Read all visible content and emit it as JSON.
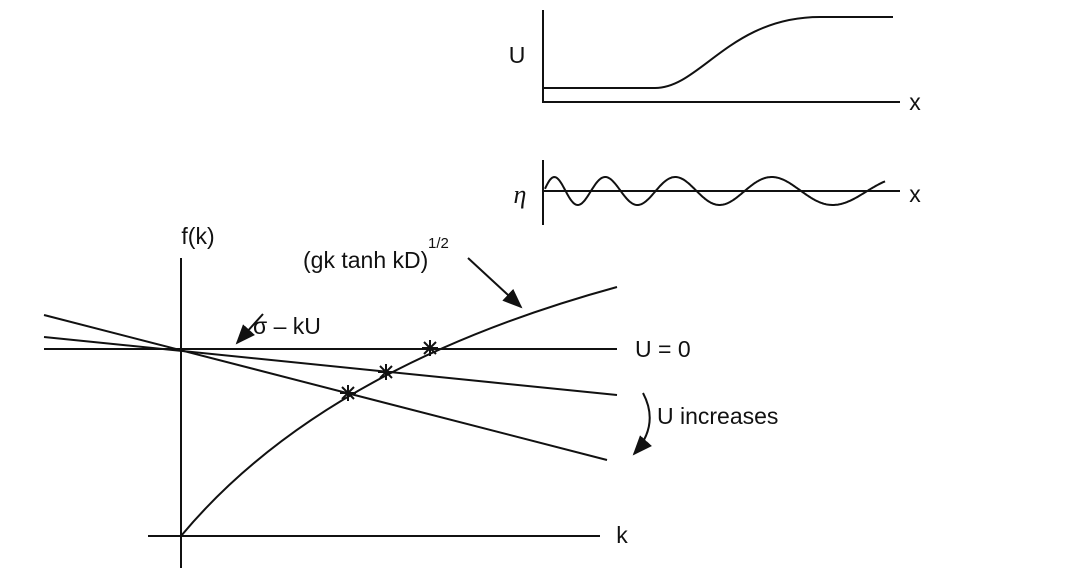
{
  "top_plot": {
    "y_label": "U",
    "x_label": "x"
  },
  "wave_plot": {
    "y_label": "η",
    "x_label": "x"
  },
  "main_plot": {
    "y_label": "f(k)",
    "x_label": "k",
    "curve_label": "(gk tanh kD)",
    "curve_exponent": "1/2",
    "line_label": "σ – kU",
    "u_zero_label": "U = 0",
    "increase_label": "U increases"
  }
}
